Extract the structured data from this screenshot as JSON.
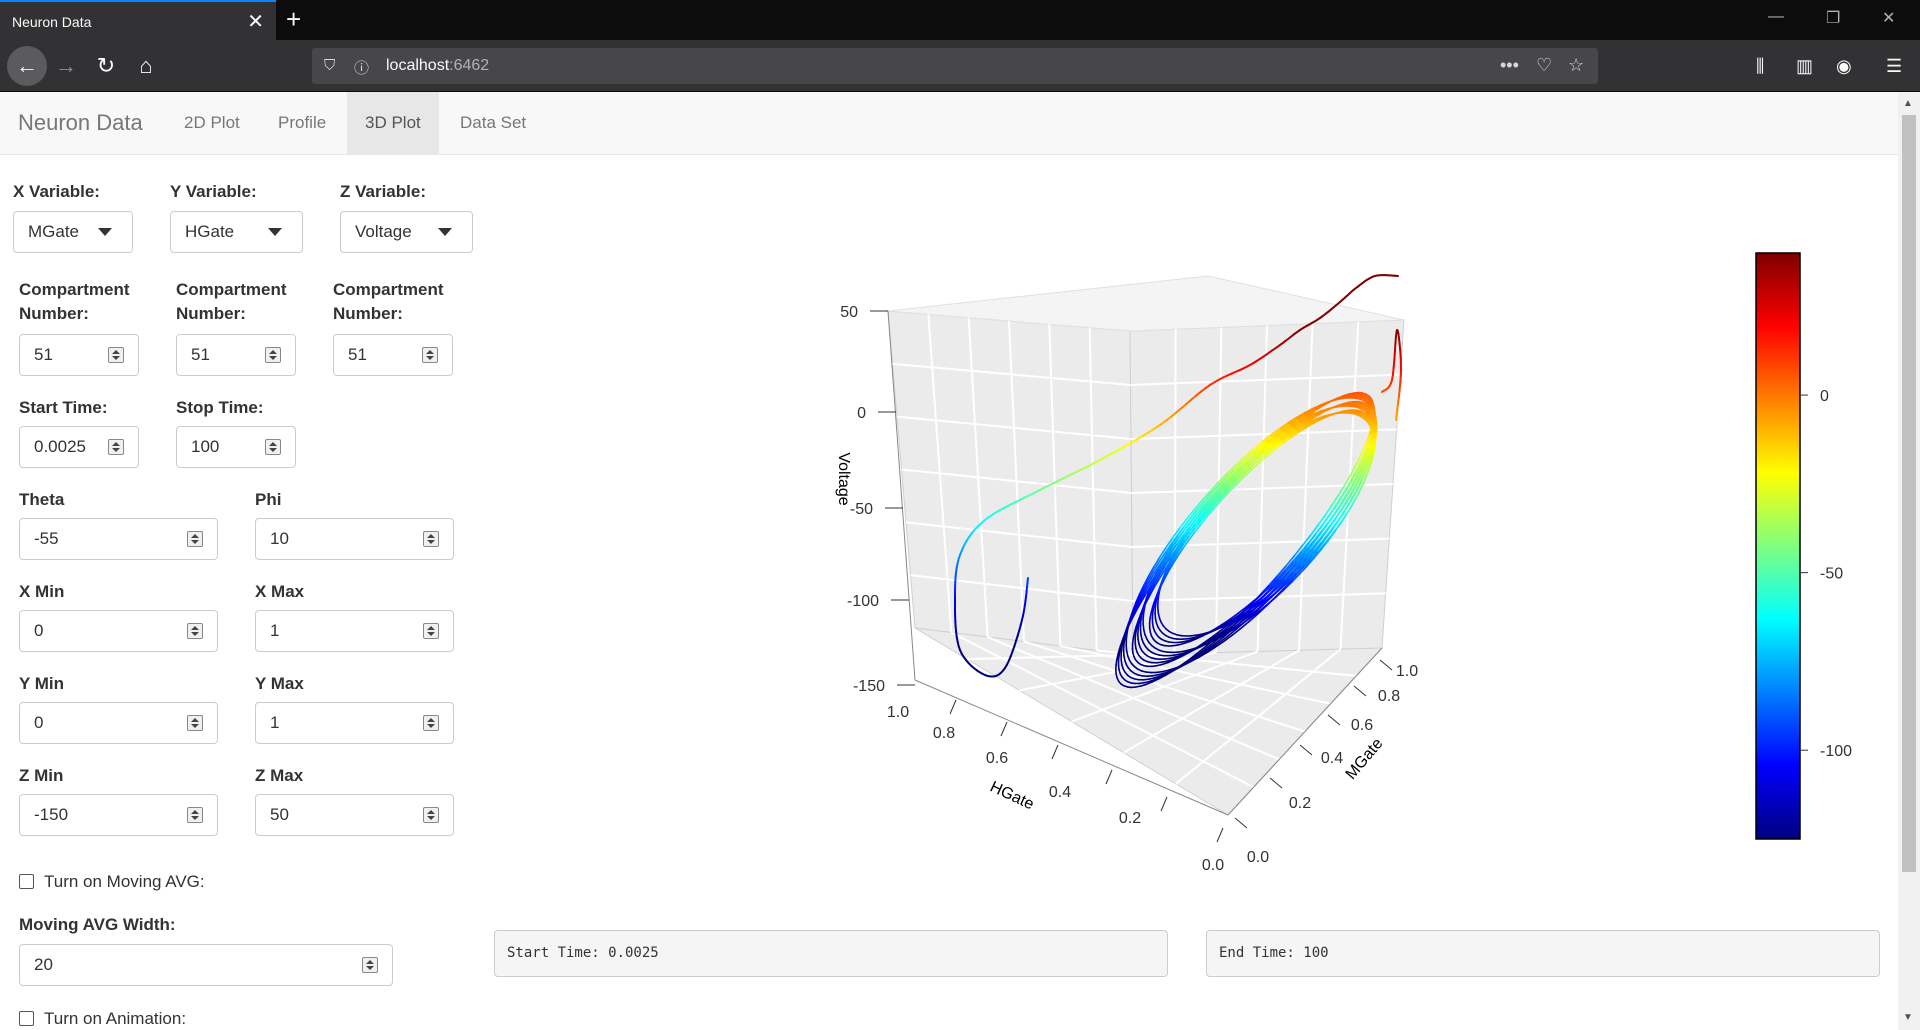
{
  "browser": {
    "tab_title": "Neuron Data",
    "url_host": "localhost",
    "url_port": ":6462"
  },
  "app": {
    "brand": "Neuron Data",
    "nav": [
      "2D Plot",
      "Profile",
      "3D Plot",
      "Data Set"
    ],
    "active_nav": "3D Plot"
  },
  "controls": {
    "x_variable": {
      "label": "X Variable:",
      "value": "MGate"
    },
    "y_variable": {
      "label": "Y Variable:",
      "value": "HGate"
    },
    "z_variable": {
      "label": "Z Variable:",
      "value": "Voltage"
    },
    "compartment_label_1": "Compartment",
    "compartment_label_2": "Number:",
    "compartment_x": "51",
    "compartment_y": "51",
    "compartment_z": "51",
    "start_time": {
      "label": "Start Time:",
      "value": "0.0025"
    },
    "stop_time": {
      "label": "Stop Time:",
      "value": "100"
    },
    "theta": {
      "label": "Theta",
      "value": "-55"
    },
    "phi": {
      "label": "Phi",
      "value": "10"
    },
    "x_min": {
      "label": "X Min",
      "value": "0"
    },
    "x_max": {
      "label": "X Max",
      "value": "1"
    },
    "y_min": {
      "label": "Y Min",
      "value": "0"
    },
    "y_max": {
      "label": "Y Max",
      "value": "1"
    },
    "z_min": {
      "label": "Z Min",
      "value": "-150"
    },
    "z_max": {
      "label": "Z Max",
      "value": "50"
    },
    "moving_avg_toggle": "Turn on Moving AVG:",
    "moving_avg_width": {
      "label": "Moving AVG Width:",
      "value": "20"
    },
    "animation_toggle": "Turn on Animation:"
  },
  "status": {
    "start": "Start Time: 0.0025",
    "end": "End Time: 100"
  },
  "chart_data": {
    "type": "line",
    "xlabel": "MGate",
    "ylabel": "HGate",
    "zlabel": "Voltage",
    "x_ticks": [
      "0.0",
      "0.2",
      "0.4",
      "0.6",
      "0.8",
      "1.0"
    ],
    "y_ticks": [
      "0.0",
      "0.2",
      "0.4",
      "0.6",
      "0.8",
      "1.0"
    ],
    "z_ticks": [
      "50",
      "0",
      "-50",
      "-100",
      "-150"
    ],
    "xlim": [
      0,
      1
    ],
    "ylim": [
      0,
      1
    ],
    "zlim": [
      -150,
      50
    ],
    "colorbar_ticks": [
      "0",
      "-50",
      "-100"
    ],
    "colorbar_range": [
      -125,
      40
    ],
    "colormap": [
      "#00007f",
      "#0000ff",
      "#007fff",
      "#00ffff",
      "#7fff7f",
      "#ffff00",
      "#ff7f00",
      "#ff0000",
      "#7f0000"
    ],
    "series_description": "Single membrane trajectory colored by voltage (transient spike then repeated limit cycle loops)"
  }
}
